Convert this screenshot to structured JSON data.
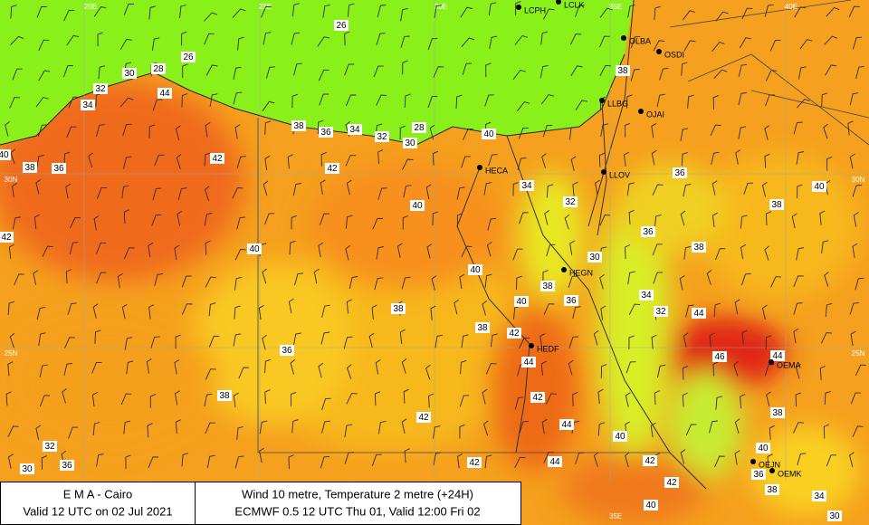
{
  "map": {
    "grid_labels": [
      "20E",
      "25E",
      "30E",
      "35E",
      "40E",
      "35E",
      "30N",
      "25N",
      "30N",
      "25N"
    ],
    "stations": [
      "LCPH",
      "LCLK",
      "OLBA",
      "OSDI",
      "LLBG",
      "OJAI",
      "LLOV",
      "HECA",
      "HEGN",
      "HEDF",
      "OEMA",
      "OEJN",
      "OEMK"
    ],
    "temperatures": [
      26,
      26,
      28,
      30,
      32,
      34,
      44,
      38,
      38,
      36,
      34,
      32,
      30,
      28,
      40,
      42,
      42,
      40,
      38,
      36,
      34,
      32,
      36,
      40,
      38,
      40,
      36,
      38,
      42,
      40,
      30,
      40,
      38,
      34,
      36,
      40,
      38,
      32,
      44,
      38,
      42,
      36,
      46,
      44,
      44,
      38,
      42,
      38,
      42,
      44,
      40,
      32,
      40,
      36,
      30,
      42,
      44,
      42,
      36,
      42,
      38,
      34,
      40,
      30
    ]
  },
  "footer": {
    "left": [
      "E M A  -  Cairo",
      "Valid 12 UTC on 02 Jul 2021"
    ],
    "right": [
      "Wind  10 metre, Temperature  2 metre (+24H)",
      "ECMWF 0.5 12 UTC Thu 01, Valid 12:00 Fri 02"
    ]
  }
}
